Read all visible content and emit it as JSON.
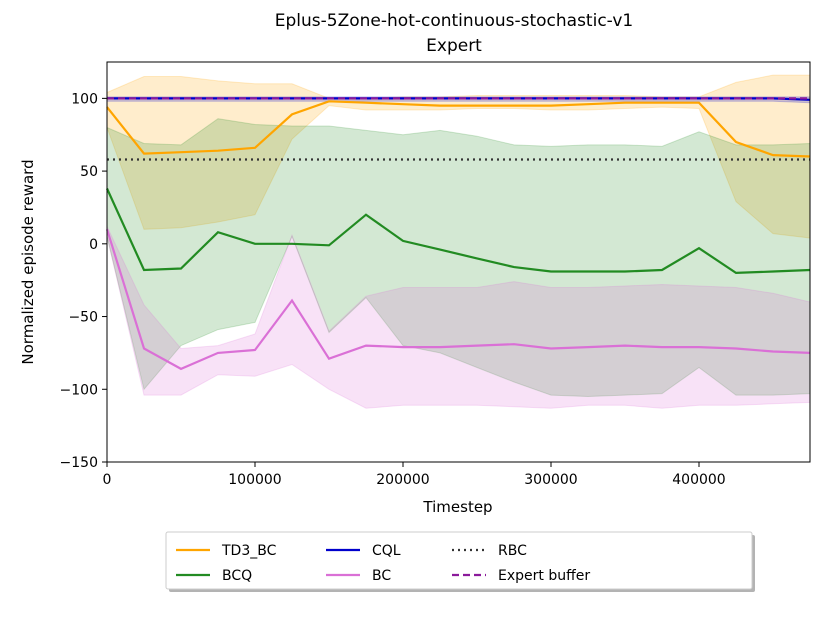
{
  "chart_data": {
    "type": "line",
    "title": "Eplus-5Zone-hot-continuous-stochastic-v1",
    "subtitle": "Expert",
    "xlabel": "Timestep",
    "ylabel": "Normalized episode reward",
    "xlim": [
      0,
      475000
    ],
    "ylim": [
      -150,
      125
    ],
    "xticks": [
      0,
      100000,
      200000,
      300000,
      400000
    ],
    "xtick_labels": [
      "0",
      "100000",
      "200000",
      "300000",
      "400000"
    ],
    "yticks": [
      -150,
      -100,
      -50,
      0,
      50,
      100
    ],
    "ytick_labels": [
      "−150",
      "−100",
      "−50",
      "0",
      "50",
      "100"
    ],
    "grid": false,
    "legend_position": "below plot",
    "x": [
      0,
      25000,
      50000,
      75000,
      100000,
      125000,
      150000,
      175000,
      200000,
      225000,
      250000,
      275000,
      300000,
      325000,
      350000,
      375000,
      400000,
      425000,
      450000,
      475000
    ],
    "series": [
      {
        "name": "TD3_BC",
        "color": "#FFA500",
        "style": "solid",
        "values": [
          94,
          62,
          63,
          64,
          66,
          89,
          98,
          97,
          96,
          95,
          95,
          95,
          95,
          96,
          97,
          97,
          97,
          70,
          61,
          60
        ],
        "band_upper": [
          104,
          115,
          115,
          112,
          110,
          110,
          100,
          100,
          101,
          101,
          102,
          102,
          102,
          102,
          102,
          101,
          101,
          111,
          116,
          116
        ],
        "band_lower": [
          80,
          10,
          11,
          15,
          20,
          72,
          95,
          92,
          92,
          92,
          93,
          93,
          92,
          92,
          93,
          94,
          93,
          29,
          7,
          4
        ]
      },
      {
        "name": "BCQ",
        "color": "#228B22",
        "style": "solid",
        "values": [
          38,
          -18,
          -17,
          8,
          0,
          0,
          -1,
          20,
          2,
          -4,
          -10,
          -16,
          -19,
          -19,
          -19,
          -18,
          -3,
          -20,
          -19,
          -18
        ],
        "band_upper": [
          80,
          69,
          68,
          86,
          82,
          81,
          81,
          78,
          75,
          78,
          74,
          68,
          67,
          68,
          68,
          67,
          77,
          68,
          68,
          69
        ],
        "band_lower": [
          5,
          -100,
          -70,
          -59,
          -54,
          5,
          -61,
          -37,
          -70,
          -75,
          -85,
          -95,
          -104,
          -105,
          -104,
          -103,
          -85,
          -104,
          -104,
          -103
        ]
      },
      {
        "name": "CQL",
        "color": "#0000CC",
        "style": "solid",
        "values": [
          100,
          100,
          100,
          100,
          100,
          100,
          100,
          100,
          100,
          100,
          100,
          100,
          100,
          100,
          100,
          100,
          100,
          100,
          100,
          99
        ],
        "band_upper": [
          101,
          101,
          101,
          101,
          101,
          101,
          101,
          101,
          101,
          101,
          101,
          101,
          101,
          101,
          101,
          101,
          101,
          101,
          101,
          101
        ],
        "band_lower": [
          98,
          98,
          98,
          98,
          98,
          98,
          98,
          98,
          98,
          98,
          98,
          98,
          98,
          98,
          98,
          98,
          98,
          98,
          98,
          97
        ]
      },
      {
        "name": "BC",
        "color": "#DA70D6",
        "style": "solid",
        "values": [
          10,
          -72,
          -86,
          -75,
          -73,
          -39,
          -79,
          -70,
          -71,
          -71,
          -70,
          -69,
          -72,
          -71,
          -70,
          -71,
          -71,
          -72,
          -74,
          -75
        ],
        "band_upper": [
          12,
          -42,
          -72,
          -70,
          -62,
          6,
          -60,
          -36,
          -30,
          -30,
          -30,
          -26,
          -30,
          -30,
          -29,
          -28,
          -29,
          -30,
          -34,
          -40
        ],
        "band_lower": [
          5,
          -104,
          -104,
          -90,
          -91,
          -83,
          -100,
          -113,
          -111,
          -111,
          -111,
          -112,
          -113,
          -111,
          -111,
          -113,
          -111,
          -111,
          -110,
          -109
        ]
      },
      {
        "name": "RBC",
        "color": "#333333",
        "style": "dotted",
        "values": [
          58,
          58,
          58,
          58,
          58,
          58,
          58,
          58,
          58,
          58,
          58,
          58,
          58,
          58,
          58,
          58,
          58,
          58,
          58,
          58
        ]
      },
      {
        "name": "Expert buffer",
        "color": "#8B1A9B",
        "style": "dashed",
        "values": [
          100,
          100,
          100,
          100,
          100,
          100,
          100,
          100,
          100,
          100,
          100,
          100,
          100,
          100,
          100,
          100,
          100,
          100,
          100,
          100
        ]
      }
    ],
    "legend_order": [
      "TD3_BC",
      "BCQ",
      "CQL",
      "BC",
      "RBC",
      "Expert buffer"
    ]
  }
}
